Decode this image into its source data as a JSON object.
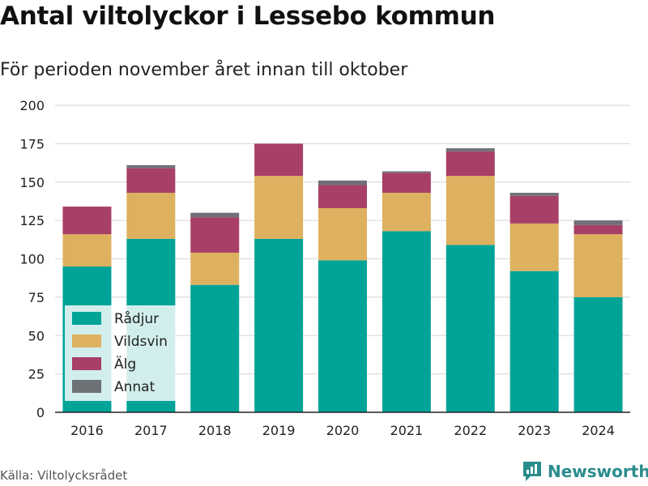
{
  "title": "Antal viltolyckor i Lessebo kommun",
  "subtitle": "För perioden november året innan till oktober",
  "source": "Källa: Viltolycksrådet",
  "brand": "Newsworthy",
  "colors": {
    "Rådjur": "#00a398",
    "Vildsvin": "#ddb15f",
    "Älg": "#a83f67",
    "Annat": "#6e7176"
  },
  "chart_data": {
    "type": "bar",
    "stacked": true,
    "categories": [
      "2016",
      "2017",
      "2018",
      "2019",
      "2020",
      "2021",
      "2022",
      "2023",
      "2024"
    ],
    "series": [
      {
        "name": "Rådjur",
        "values": [
          95,
          113,
          83,
          113,
          99,
          118,
          109,
          92,
          75
        ]
      },
      {
        "name": "Vildsvin",
        "values": [
          21,
          30,
          21,
          41,
          34,
          25,
          45,
          31,
          41
        ]
      },
      {
        "name": "Älg",
        "values": [
          18,
          16,
          23,
          21,
          15,
          13,
          16,
          18,
          6
        ]
      },
      {
        "name": "Annat",
        "values": [
          0,
          2,
          3,
          0,
          3,
          1,
          2,
          2,
          3
        ]
      }
    ],
    "yticks": [
      0,
      25,
      50,
      75,
      100,
      125,
      150,
      175,
      200
    ],
    "ylim": [
      0,
      200
    ],
    "grid": true,
    "legend": "bottom-left"
  }
}
